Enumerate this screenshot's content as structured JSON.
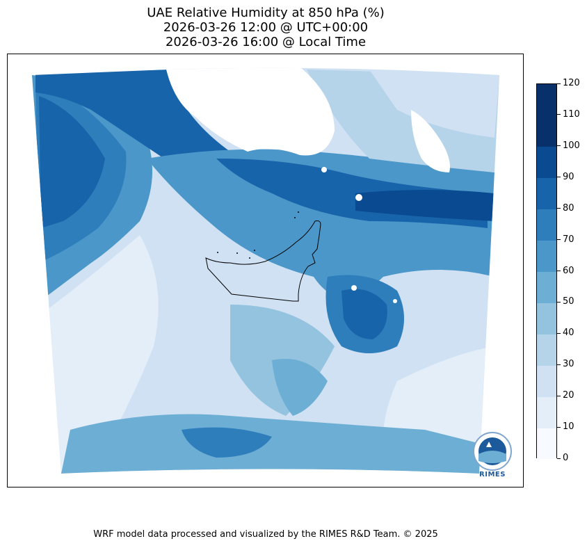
{
  "title": {
    "line1": "UAE Relative Humidity at 850 hPa (%)",
    "line2": "2026-03-26 12:00 @ UTC+00:00",
    "line3": "2026-03-26 16:00 @ Local Time"
  },
  "colorbar": {
    "levels": [
      0,
      10,
      20,
      30,
      40,
      50,
      60,
      70,
      80,
      90,
      100,
      110,
      120
    ],
    "tick_labels": [
      "0",
      "10",
      "20",
      "30",
      "40",
      "50",
      "60",
      "70",
      "80",
      "90",
      "100",
      "110",
      "120"
    ],
    "colors": [
      "#f7fbff",
      "#e3eef9",
      "#cfe1f2",
      "#b5d4e9",
      "#93c3df",
      "#6daed5",
      "#4b97c9",
      "#2f7ebc",
      "#1864aa",
      "#0a4a90",
      "#08306b",
      "#08306b"
    ]
  },
  "logo": {
    "text": "RIMES",
    "icon": "rimes-logo-icon"
  },
  "footer": {
    "text": "WRF model data processed and visualized by the RIMES R&D Team. © 2025"
  },
  "colors": {
    "water_mask": "#ffffff",
    "border": "#000000"
  }
}
